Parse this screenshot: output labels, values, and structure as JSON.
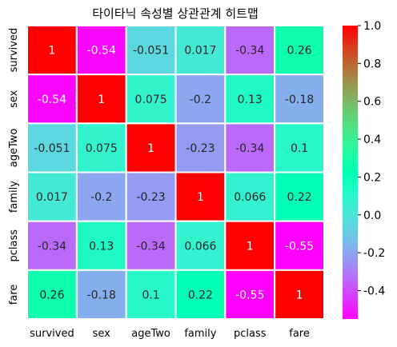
{
  "chart_data": {
    "type": "heatmap",
    "title": "타이타닉 속성별 상관관계 히트맵",
    "rows": [
      "survived",
      "sex",
      "ageTwo",
      "family",
      "pclass",
      "fare"
    ],
    "columns": [
      "survived",
      "sex",
      "ageTwo",
      "family",
      "pclass",
      "fare"
    ],
    "values": [
      [
        1,
        -0.54,
        -0.051,
        0.017,
        -0.34,
        0.26
      ],
      [
        -0.54,
        1,
        0.075,
        -0.2,
        0.13,
        -0.18
      ],
      [
        -0.051,
        0.075,
        1,
        -0.23,
        -0.34,
        0.1
      ],
      [
        0.017,
        -0.2,
        -0.23,
        1,
        0.066,
        0.22
      ],
      [
        -0.34,
        0.13,
        -0.34,
        0.066,
        1,
        -0.55
      ],
      [
        0.26,
        -0.18,
        0.1,
        0.22,
        -0.55,
        1
      ]
    ],
    "labels": [
      [
        "1",
        "-0.54",
        "-0.051",
        "0.017",
        "-0.34",
        "0.26"
      ],
      [
        "-0.54",
        "1",
        "0.075",
        "-0.2",
        "0.13",
        "-0.18"
      ],
      [
        "-0.051",
        "0.075",
        "1",
        "-0.23",
        "-0.34",
        "0.1"
      ],
      [
        "0.017",
        "-0.2",
        "-0.23",
        "1",
        "0.066",
        "0.22"
      ],
      [
        "-0.34",
        "0.13",
        "-0.34",
        "0.066",
        "1",
        "-0.55"
      ],
      [
        "0.26",
        "-0.18",
        "0.1",
        "0.22",
        "-0.55",
        "1"
      ]
    ],
    "colormap": "rainbow",
    "vmin": -0.55,
    "vmax": 1.0,
    "colorbar_ticks": [
      -0.4,
      -0.2,
      0.0,
      0.2,
      0.4,
      0.6,
      0.8,
      1.0
    ],
    "colorbar_tick_labels": [
      "-0.4",
      "-0.2",
      "0.0",
      "0.2",
      "0.4",
      "0.6",
      "0.8",
      "1.0"
    ]
  }
}
